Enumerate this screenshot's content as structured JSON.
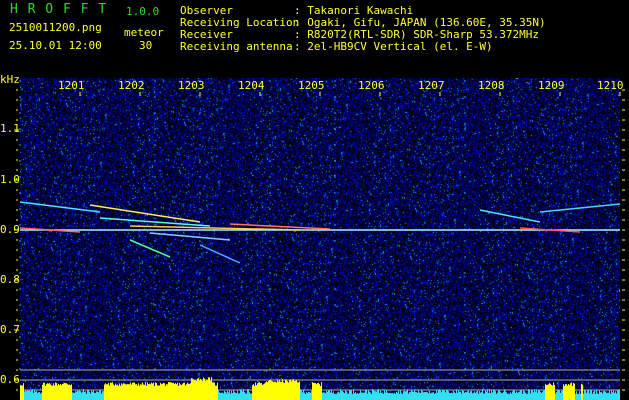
{
  "app": {
    "name": "H R O F F T",
    "version": "1.0.0"
  },
  "file": {
    "name": "2510011200.png",
    "datetime": "25.10.01 12:00",
    "mode_label": "meteor",
    "count": "30"
  },
  "info": [
    {
      "label": "Observer",
      "value": ": Takanori Kawachi"
    },
    {
      "label": "Receiving Location",
      "value": ": Ogaki, Gifu, JAPAN (136.60E, 35.35N)"
    },
    {
      "label": "Receiver",
      "value": ": R820T2(RTL-SDR) SDR-Sharp 53.372MHz"
    },
    {
      "label": "Receiving antenna",
      "value": ": 2el-HB9CV Vertical (el. E-W)"
    }
  ],
  "axis": {
    "y_unit": "kHz",
    "y_ticks": [
      "1.1",
      "1.0",
      "0.9",
      "0.8",
      "0.7",
      "0.6"
    ],
    "x_ticks": [
      "1201",
      "1202",
      "1203",
      "1204",
      "1205",
      "1206",
      "1207",
      "1208",
      "1209",
      "1210"
    ]
  },
  "colors": {
    "text": "#ffff33",
    "title": "#22dd22",
    "histogram_high": "#ffff00",
    "histogram_low": "#33e0f0",
    "background_noise": "#10107a"
  }
}
